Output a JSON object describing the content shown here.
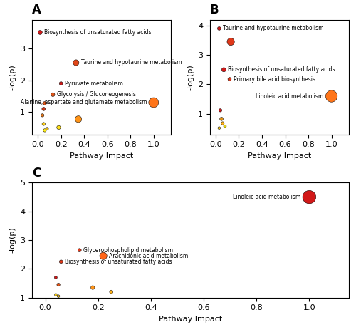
{
  "chart_data": [
    {
      "type": "scatter",
      "title": "A",
      "x_label": "Pathway Impact",
      "y_label": "-log(p)",
      "x": [
        0.02,
        0.33,
        0.2,
        0.13,
        1.0,
        0.05,
        0.06,
        0.04,
        0.35,
        0.05,
        0.18,
        0.06,
        0.08
      ],
      "values": [
        3.5,
        2.55,
        1.9,
        1.55,
        1.3,
        1.1,
        1.28,
        0.9,
        0.78,
        0.63,
        0.52,
        0.43,
        0.48
      ],
      "sizes": [
        18,
        35,
        12,
        15,
        100,
        12,
        12,
        10,
        45,
        10,
        15,
        10,
        8
      ],
      "colors": [
        "#cc0000",
        "#dd3300",
        "#cc0000",
        "#dd4400",
        "#ff6600",
        "#cc2200",
        "#dd4400",
        "#dd6600",
        "#ff8800",
        "#ffcc00",
        "#ffdd00",
        "#ffee00",
        "#ddaa00"
      ],
      "labels": [
        "Biosynthesis of unsaturated fatty acids",
        "Taurine and hypotaurine metabolism",
        "Pyruvate metabolism",
        "Glycolysis / Gluconeogenesis",
        "Alanine, aspartate and glutamate metabolism",
        null,
        null,
        null,
        null,
        null,
        null,
        null,
        null
      ],
      "xlim": [
        -0.05,
        1.15
      ],
      "ylim": [
        0.3,
        3.9
      ],
      "xticks": [
        0.0,
        0.2,
        0.4,
        0.6,
        0.8,
        1.0
      ],
      "yticks": [
        1,
        2,
        3
      ],
      "grid": false
    },
    {
      "type": "scatter",
      "title": "B",
      "x_label": "Pathway Impact",
      "y_label": "-log(p)",
      "x": [
        0.03,
        0.13,
        0.07,
        0.12,
        1.0,
        0.04,
        0.05,
        0.06,
        0.08,
        0.03
      ],
      "values": [
        3.9,
        3.45,
        2.5,
        2.18,
        1.6,
        1.12,
        0.83,
        0.68,
        0.58,
        0.52
      ],
      "sizes": [
        12,
        55,
        18,
        12,
        140,
        10,
        12,
        10,
        8,
        7
      ],
      "colors": [
        "#cc0000",
        "#dd2200",
        "#cc0000",
        "#dd2200",
        "#ff6600",
        "#cc0000",
        "#dd8800",
        "#ffaa00",
        "#ddcc00",
        "#ffcc00"
      ],
      "labels": [
        "Taurine and hypotaurine metabolism",
        null,
        "Biosynthesis of unsaturated fatty acids",
        "Primary bile acid biosynthesis",
        "Linoleic acid metabolism",
        null,
        null,
        null,
        null,
        null
      ],
      "xlim": [
        -0.05,
        1.15
      ],
      "ylim": [
        0.3,
        4.2
      ],
      "xticks": [
        0.0,
        0.2,
        0.4,
        0.6,
        0.8,
        1.0
      ],
      "yticks": [
        1,
        2,
        3,
        4
      ],
      "grid": false
    },
    {
      "type": "scatter",
      "title": "C",
      "x_label": "Pathway Impact",
      "y_label": "-log(p)",
      "x": [
        1.0,
        0.13,
        0.22,
        0.06,
        0.04,
        0.05,
        0.18,
        0.25,
        0.04,
        0.05
      ],
      "values": [
        4.5,
        2.65,
        2.45,
        2.25,
        1.7,
        1.45,
        1.35,
        1.2,
        1.1,
        1.05
      ],
      "sizes": [
        180,
        12,
        55,
        12,
        8,
        10,
        15,
        12,
        7,
        7
      ],
      "colors": [
        "#cc0000",
        "#dd2200",
        "#ff5500",
        "#dd2200",
        "#cc0000",
        "#dd4400",
        "#ff8800",
        "#ffaa00",
        "#ffcc00",
        "#ddaa00"
      ],
      "labels": [
        "Linoleic acid metabolism",
        "Glycerophospholipid metabolism",
        "Arachidonic acid metabolism",
        "Biosynthesis of unsaturated fatty acids",
        null,
        null,
        null,
        null,
        null,
        null
      ],
      "xlim": [
        -0.05,
        1.15
      ],
      "ylim": [
        1.0,
        5.0
      ],
      "xticks": [
        0.0,
        0.2,
        0.4,
        0.6,
        0.8,
        1.0
      ],
      "yticks": [
        1,
        2,
        3,
        4,
        5
      ],
      "grid": false
    }
  ]
}
